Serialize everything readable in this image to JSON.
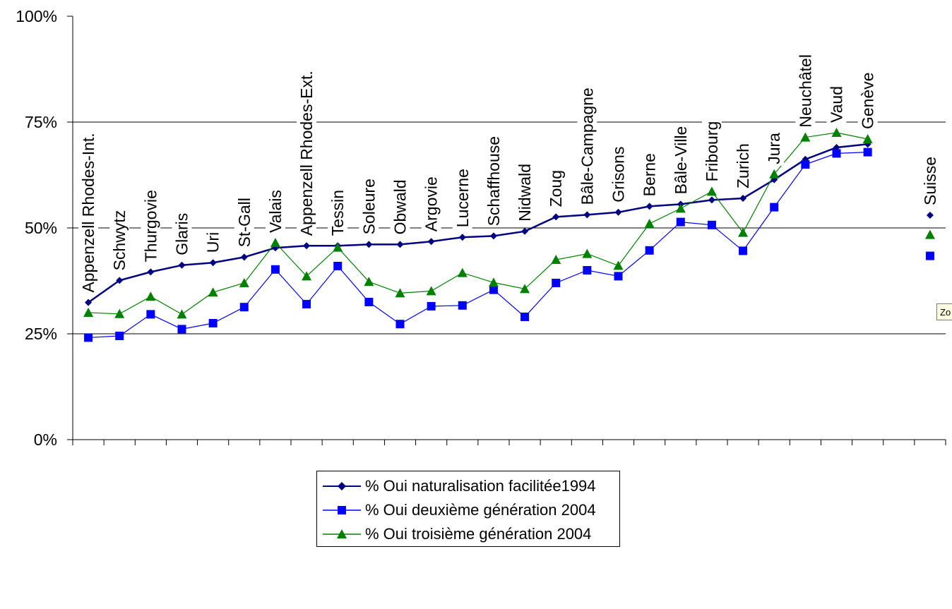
{
  "chart_data": {
    "type": "line",
    "y_ticks": [
      "0%",
      "25%",
      "50%",
      "75%",
      "100%"
    ],
    "ylim": [
      0,
      100
    ],
    "grid": "horizontal at 25/50/75",
    "categories": [
      "Appenzell Rhodes-Int.",
      "Schwytz",
      "Thurgovie",
      "Glaris",
      "Uri",
      "St-Gall",
      "Valais",
      "Appenzell Rhodes-Ext.",
      "Tessin",
      "Soleure",
      "Obwald",
      "Argovie",
      "Lucerne",
      "Schaffhouse",
      "Nidwald",
      "Zoug",
      "Bâle-Campagne",
      "Grisons",
      "Berne",
      "Bâle-Ville",
      "Fribourg",
      "Zurich",
      "Jura",
      "Neuchâtel",
      "Vaud",
      "Genève",
      "",
      "Suisse"
    ],
    "series": [
      {
        "name": "% Oui naturalisation facilitée1994",
        "color": "#000080",
        "marker": "diamond",
        "values": [
          32.4,
          37.6,
          39.6,
          41.2,
          41.8,
          43.1,
          45.3,
          45.8,
          45.8,
          46.1,
          46.1,
          46.8,
          47.8,
          48.1,
          49.2,
          52.6,
          53.1,
          53.7,
          55.1,
          55.6,
          56.6,
          57.0,
          61.4,
          66.2,
          69.0,
          69.8,
          null,
          53.0
        ]
      },
      {
        "name": "% Oui deuxième génération 2004",
        "color": "#0000ff",
        "marker": "square",
        "values": [
          24.1,
          24.5,
          29.6,
          26.1,
          27.5,
          31.3,
          40.2,
          32.0,
          41.0,
          32.5,
          27.3,
          31.5,
          31.7,
          35.4,
          29.0,
          37.0,
          40.0,
          38.6,
          44.7,
          51.4,
          50.7,
          44.6,
          54.9,
          65.0,
          67.6,
          67.9,
          null,
          43.4
        ]
      },
      {
        "name": "% Oui troisième génération 2004",
        "color": "#008000",
        "marker": "triangle",
        "values": [
          30.0,
          29.7,
          33.8,
          29.6,
          34.8,
          37.0,
          46.5,
          38.6,
          45.4,
          37.3,
          34.6,
          35.1,
          39.4,
          37.1,
          35.6,
          42.5,
          43.9,
          41.1,
          51.0,
          54.6,
          58.6,
          48.9,
          62.7,
          71.4,
          72.5,
          71.0,
          null,
          48.4
        ]
      }
    ]
  },
  "tooltip": {
    "text": "Zo"
  }
}
